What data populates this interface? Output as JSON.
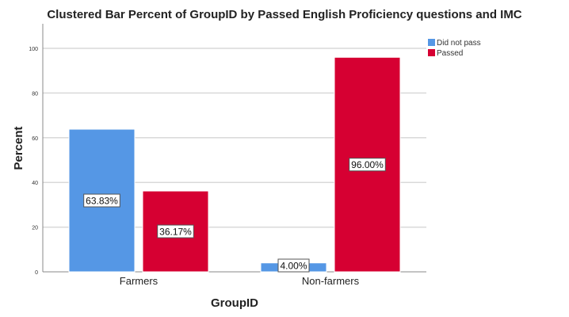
{
  "chart_data": {
    "type": "bar",
    "title": "Clustered Bar Percent of GroupID by Passed English Proficiency questions and IMC",
    "xlabel": "GroupID",
    "ylabel": "Percent",
    "categories": [
      "Farmers",
      "Non-farmers"
    ],
    "series": [
      {
        "name": "Did not pass",
        "values": [
          63.83,
          4.0
        ],
        "labels": [
          "63.83%",
          "4.00%"
        ],
        "color": "#5597e5"
      },
      {
        "name": "Passed",
        "values": [
          36.17,
          96.0
        ],
        "labels": [
          "36.17%",
          "96.00%"
        ],
        "color": "#d60032"
      }
    ],
    "yticks": [
      0,
      20,
      40,
      60,
      80,
      100
    ],
    "ylim": [
      0,
      111
    ],
    "grid": true,
    "legend": "top-right"
  }
}
